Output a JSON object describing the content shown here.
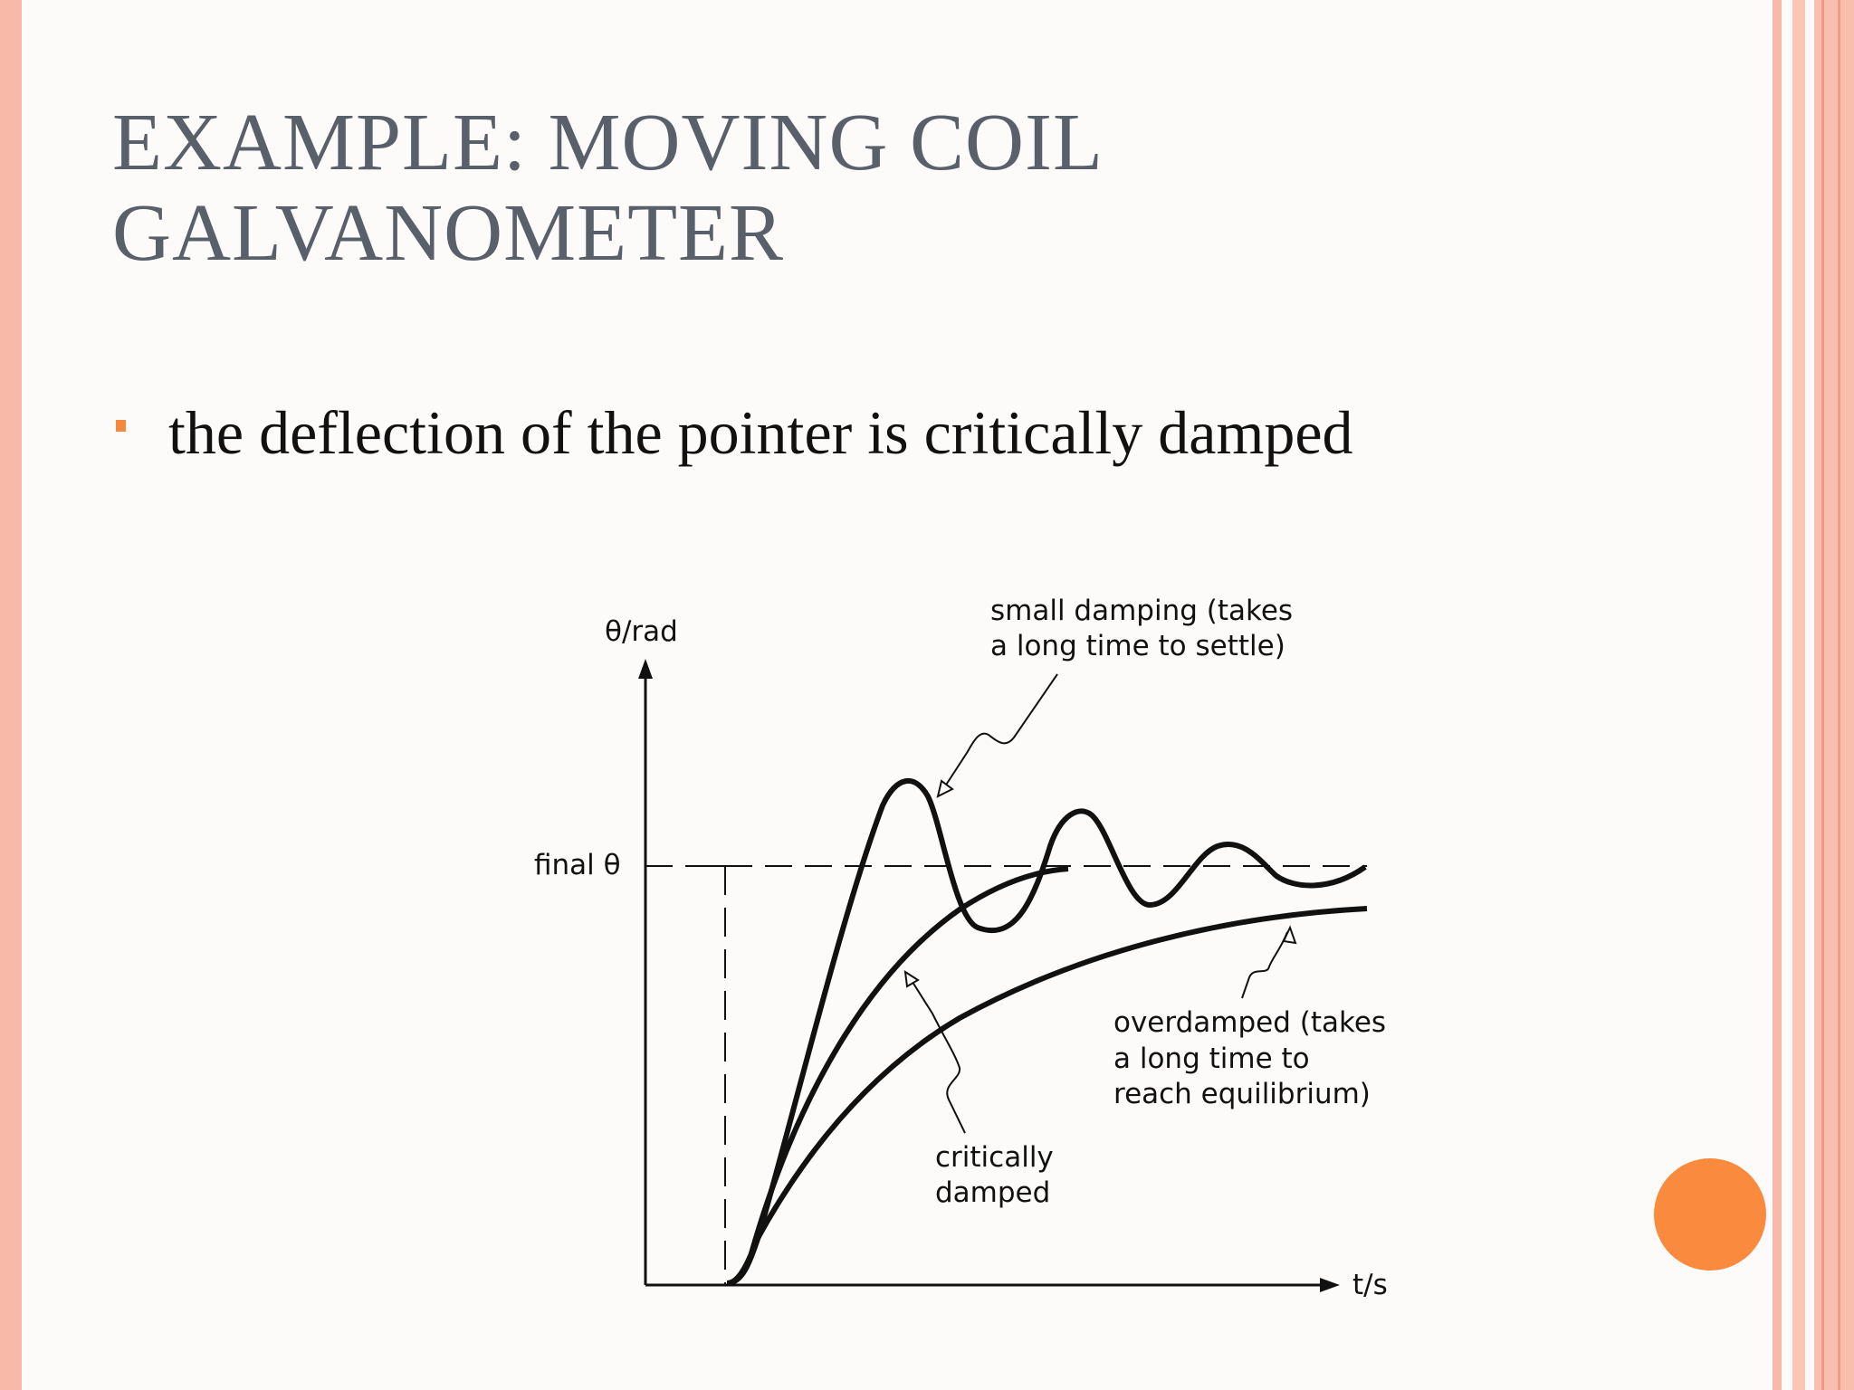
{
  "title": {
    "line1": "EXAMPLE: MOVING COIL",
    "line2": "GALVANOMETER"
  },
  "bullet": {
    "text": "the deflection of the pointer is critically damped"
  },
  "diagram": {
    "y_axis_label": "θ/rad",
    "x_axis_label": "t/s",
    "final_label": "final θ",
    "small_damping_label": [
      "small damping (takes",
      "a long time to settle)"
    ],
    "overdamped_label": [
      "overdamped (takes",
      "a long time to",
      "reach equilibrium)"
    ],
    "critically_damped_label": [
      "critically",
      "damped"
    ]
  },
  "colors": {
    "title": "#5a6069",
    "bullet": "#f5883e",
    "border": "#f8b9a8",
    "accent_dot": "#f98a3e"
  }
}
